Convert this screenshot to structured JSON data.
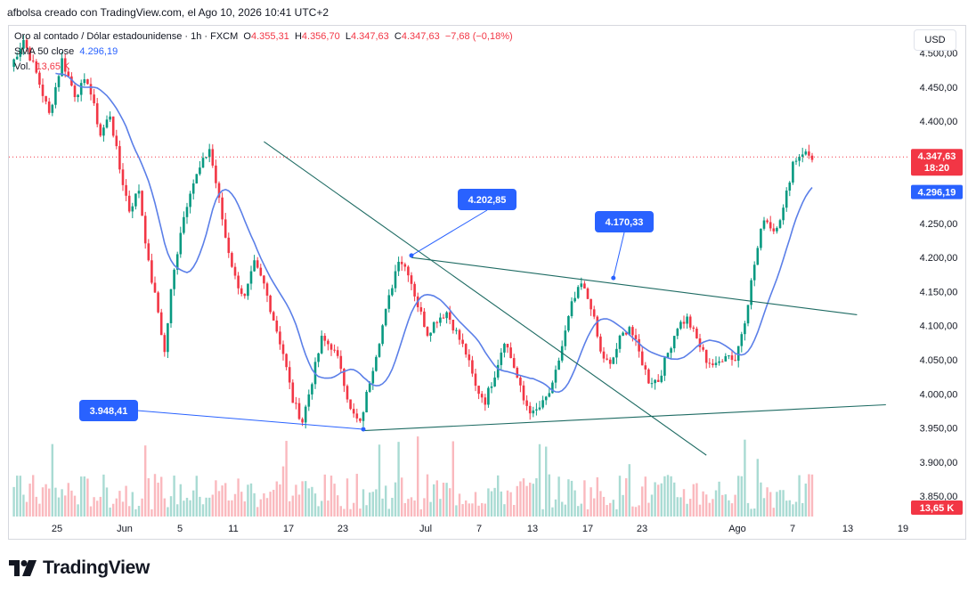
{
  "header": {
    "text": "afbolsa creado con TradingView.com, el Ago 10, 2026 10:41 UTC+2"
  },
  "legend": {
    "symbol": "Oro al contado / Dólar estadounidense · 1h · FXCM",
    "o_label": "O",
    "o_value": "4.355,31",
    "h_label": "H",
    "h_value": "4.356,70",
    "l_label": "L",
    "l_value": "4.347,63",
    "c_label": "C",
    "c_value": "4.347,63",
    "change": "−7,68 (−0,18%)",
    "sma_label": "SMA 50 close",
    "sma_value": "4.296,19",
    "vol_label": "Vol.",
    "vol_value": "13,65 K"
  },
  "price_axis": {
    "currency": "USD",
    "last_price": "4.347,63",
    "countdown": "18:20",
    "sma_price": "4.296,19",
    "volume_badge": "13,65 K"
  },
  "callouts": [
    {
      "text": "4.202,85"
    },
    {
      "text": "4.170,33"
    },
    {
      "text": "3.948,41"
    }
  ],
  "colors": {
    "up": "#089981",
    "down": "#f23645",
    "sma": "#5b7fe8",
    "trendline": "#1e6b63",
    "callout": "#2962ff"
  },
  "logo": {
    "text": "TradingView"
  },
  "chart_data": {
    "type": "candlestick",
    "symbol": "XAU/USD",
    "timeframe": "1h",
    "x_tick_labels": [
      "25",
      "Jun",
      "5",
      "11",
      "17",
      "23",
      "Jul",
      "7",
      "13",
      "17",
      "23",
      "Ago",
      "7",
      "13",
      "19"
    ],
    "y_tick_labels": [
      "3.850,00",
      "3.900,00",
      "3.950,00",
      "4.000,00",
      "4.050,00",
      "4.100,00",
      "4.150,00",
      "4.200,00",
      "4.250,00",
      "4.300,00",
      "4.350,00",
      "4.400,00",
      "4.450,00",
      "4.500,00"
    ],
    "ylim": [
      3820,
      4540
    ],
    "close_path": [
      [
        0,
        4480
      ],
      [
        4,
        4520
      ],
      [
        8,
        4470
      ],
      [
        12,
        4410
      ],
      [
        16,
        4490
      ],
      [
        20,
        4440
      ],
      [
        24,
        4460
      ],
      [
        28,
        4380
      ],
      [
        31,
        4410
      ],
      [
        34,
        4330
      ],
      [
        37,
        4270
      ],
      [
        40,
        4300
      ],
      [
        43,
        4190
      ],
      [
        46,
        4120
      ],
      [
        48,
        4060
      ],
      [
        50,
        4150
      ],
      [
        53,
        4240
      ],
      [
        56,
        4300
      ],
      [
        59,
        4330
      ],
      [
        62,
        4360
      ],
      [
        64,
        4310
      ],
      [
        67,
        4230
      ],
      [
        70,
        4170
      ],
      [
        73,
        4140
      ],
      [
        76,
        4190
      ],
      [
        79,
        4160
      ],
      [
        82,
        4110
      ],
      [
        85,
        4060
      ],
      [
        88,
        3990
      ],
      [
        91,
        3960
      ],
      [
        94,
        4020
      ],
      [
        97,
        4080
      ],
      [
        100,
        4070
      ],
      [
        103,
        4040
      ],
      [
        106,
        3975
      ],
      [
        109,
        3955
      ],
      [
        112,
        4020
      ],
      [
        115,
        4080
      ],
      [
        118,
        4140
      ],
      [
        121,
        4200
      ],
      [
        124,
        4180
      ],
      [
        127,
        4130
      ],
      [
        130,
        4090
      ],
      [
        133,
        4110
      ],
      [
        136,
        4120
      ],
      [
        139,
        4090
      ],
      [
        142,
        4060
      ],
      [
        145,
        4010
      ],
      [
        148,
        3990
      ],
      [
        151,
        4030
      ],
      [
        154,
        4080
      ],
      [
        157,
        4040
      ],
      [
        160,
        3990
      ],
      [
        163,
        3970
      ],
      [
        166,
        3985
      ],
      [
        169,
        4010
      ],
      [
        172,
        4070
      ],
      [
        175,
        4130
      ],
      [
        178,
        4160
      ],
      [
        181,
        4130
      ],
      [
        184,
        4060
      ],
      [
        187,
        4040
      ],
      [
        190,
        4080
      ],
      [
        193,
        4100
      ],
      [
        196,
        4060
      ],
      [
        199,
        4020
      ],
      [
        202,
        4020
      ],
      [
        205,
        4060
      ],
      [
        208,
        4100
      ],
      [
        211,
        4110
      ],
      [
        214,
        4080
      ],
      [
        217,
        4050
      ],
      [
        220,
        4040
      ],
      [
        223,
        4060
      ],
      [
        226,
        4050
      ],
      [
        229,
        4110
      ],
      [
        232,
        4190
      ],
      [
        235,
        4260
      ],
      [
        238,
        4240
      ],
      [
        241,
        4270
      ],
      [
        244,
        4340
      ],
      [
        247,
        4355
      ],
      [
        250,
        4347
      ]
    ],
    "series": [
      {
        "name": "SMA 50 close",
        "last_value": 4296.19
      }
    ],
    "volume_last": "13,65 K",
    "annotations": [
      {
        "type": "trendline",
        "from": [
          79,
          4370
        ],
        "to": [
          217,
          3910
        ]
      },
      {
        "type": "trendline",
        "from": [
          125,
          4200
        ],
        "to": [
          264,
          4116
        ]
      },
      {
        "type": "trendline",
        "from": [
          110,
          3946
        ],
        "to": [
          273,
          3984
        ]
      },
      {
        "type": "price_label",
        "text": "4.202,85",
        "at": [
          125,
          4203
        ]
      },
      {
        "type": "price_label",
        "text": "4.170,33",
        "at": [
          188,
          4170
        ]
      },
      {
        "type": "price_label",
        "text": "3.948,41",
        "at": [
          110,
          3948
        ]
      }
    ]
  }
}
